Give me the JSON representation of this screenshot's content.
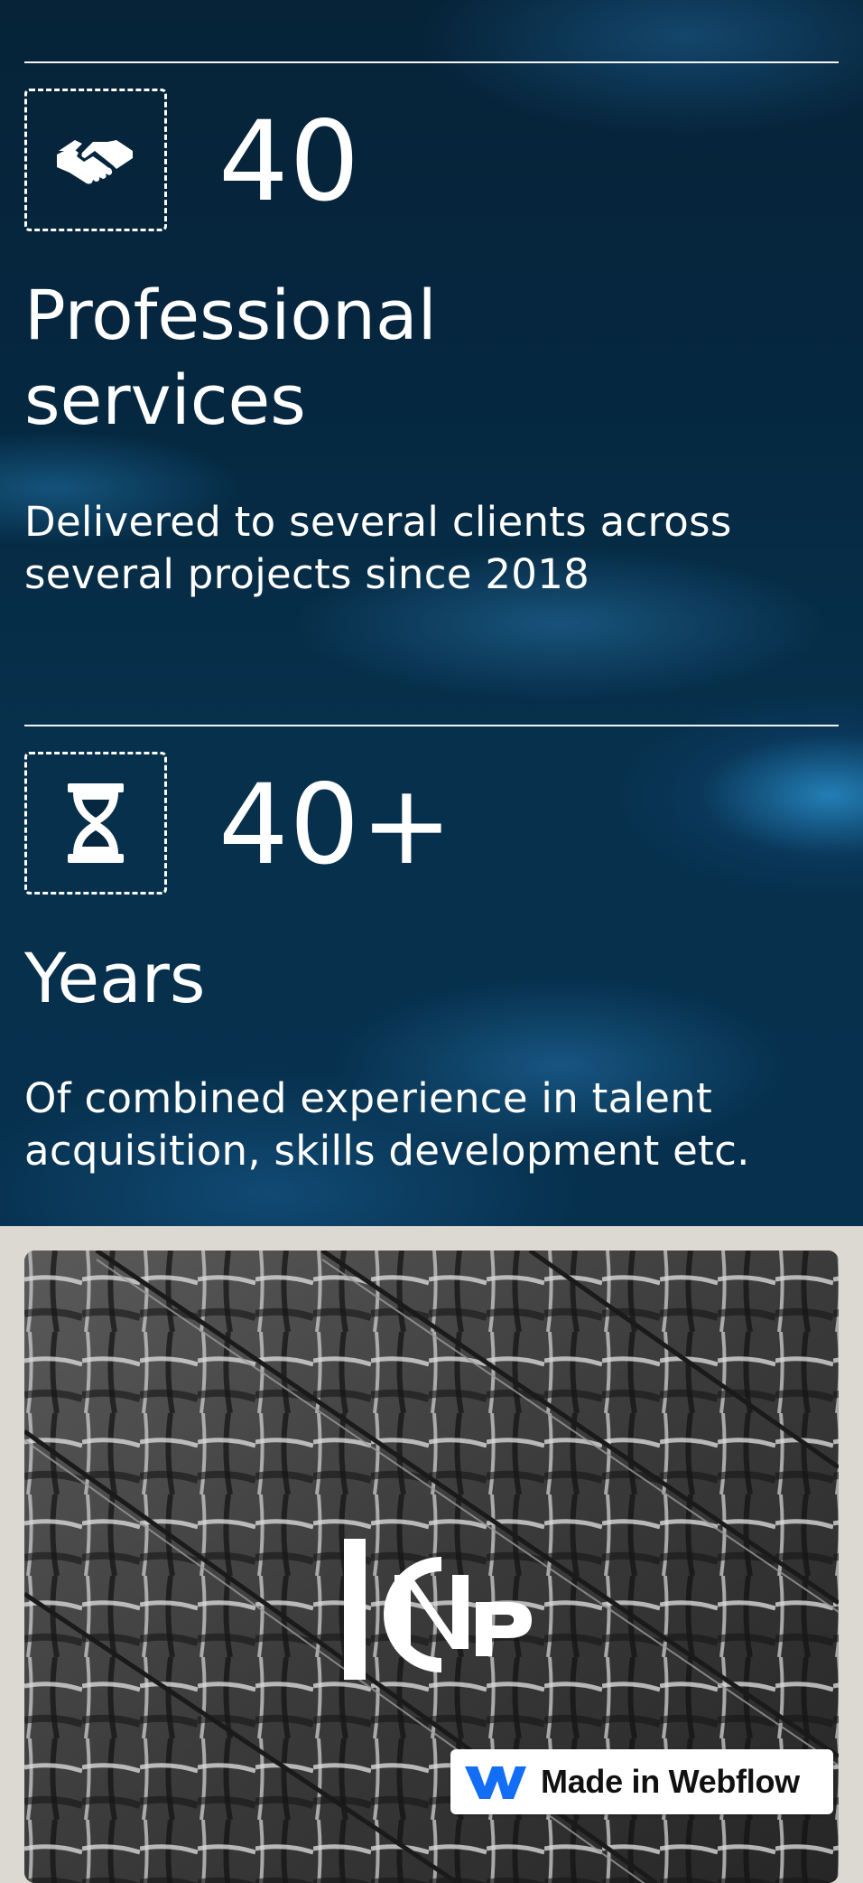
{
  "stats": [
    {
      "icon": "handshake-icon",
      "number": "40",
      "title": "Professional services",
      "description": "Delivered to several clients across several projects since 2018"
    },
    {
      "icon": "hourglass-icon",
      "number": "40+",
      "title": "Years",
      "description": "Of combined experience in talent acquisition, skills development etc."
    }
  ],
  "brand": {
    "logo_name": "inp-logo",
    "logo_letters": "INP"
  },
  "badge": {
    "label": "Made in Webflow",
    "icon": "webflow-logo-icon"
  },
  "colors": {
    "section_bg": "#05273f",
    "accent_glow": "#2a8cc8",
    "page_bg": "#dcd9d3",
    "text": "#ffffff",
    "webflow_blue": "#146ef5"
  }
}
